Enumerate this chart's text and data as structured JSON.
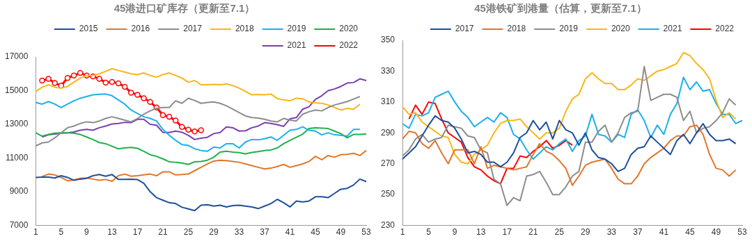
{
  "chart_data": [
    {
      "type": "line",
      "title": "45港进口矿库存（更新至7.1）",
      "categories": [
        "1",
        null,
        null,
        null,
        "5",
        null,
        null,
        null,
        "9",
        null,
        null,
        null,
        "13",
        null,
        null,
        null,
        "17",
        null,
        null,
        null,
        "21",
        null,
        null,
        null,
        "25",
        null,
        null,
        null,
        "29",
        null,
        null,
        null,
        "33",
        null,
        null,
        null,
        "37",
        null,
        null,
        null,
        "41",
        null,
        null,
        null,
        "45",
        null,
        null,
        null,
        "49",
        null,
        null,
        null,
        "53"
      ],
      "ylim": [
        7000,
        17000
      ],
      "yticks": [
        7000,
        9000,
        11000,
        13000,
        15000,
        17000
      ],
      "grid": false,
      "legend": "top",
      "marker": "none",
      "line_style": "solid",
      "series": [
        {
          "name": "2015",
          "color": "#1f4e9c",
          "values": [
            9850,
            9870,
            9870,
            9820,
            9950,
            9850,
            9680,
            9750,
            9800,
            9950,
            10020,
            9920,
            10020,
            9730,
            9730,
            9750,
            9720,
            9500,
            9000,
            8650,
            8500,
            8350,
            8300,
            8080,
            7980,
            7880,
            8200,
            8230,
            8150,
            8200,
            8100,
            8180,
            8200,
            8150,
            8100,
            8000,
            8150,
            8300,
            8550,
            8350,
            8100,
            8450,
            8400,
            8450,
            8700,
            8700,
            8650,
            8900,
            9150,
            9200,
            9400,
            9750,
            9600
          ]
        },
        {
          "name": "2016",
          "color": "#e2762a",
          "values": [
            null,
            9900,
            10050,
            10000,
            9850,
            9650,
            9700,
            9800,
            9820,
            9750,
            9680,
            9730,
            9620,
            9950,
            10050,
            9920,
            9950,
            10000,
            10050,
            9950,
            10180,
            10180,
            10000,
            10020,
            10050,
            10250,
            10450,
            10650,
            10820,
            10870,
            10850,
            10800,
            10750,
            10650,
            10550,
            10450,
            10350,
            10400,
            10500,
            10620,
            10450,
            10550,
            10650,
            10800,
            11100,
            10900,
            11150,
            11050,
            11200,
            11220,
            11280,
            11150,
            11450
          ]
        },
        {
          "name": "2017",
          "color": "#8c8c8c",
          "values": [
            11720,
            11900,
            11950,
            12200,
            12500,
            12800,
            12900,
            13050,
            13150,
            13100,
            13200,
            13350,
            13450,
            13350,
            13250,
            13150,
            13350,
            13600,
            13800,
            13950,
            14000,
            14000,
            14400,
            14250,
            14550,
            14420,
            14250,
            14300,
            14330,
            14250,
            14100,
            13900,
            13700,
            13500,
            13400,
            13370,
            13300,
            13200,
            13150,
            13350,
            13250,
            13200,
            13600,
            13750,
            13850,
            13800,
            14000,
            14150,
            14250,
            14350,
            14500,
            14650,
            null
          ]
        },
        {
          "name": "2018",
          "color": "#f7b718",
          "values": [
            14950,
            15200,
            15350,
            15200,
            15150,
            15250,
            15500,
            15750,
            15900,
            15900,
            16000,
            16150,
            16300,
            16200,
            16100,
            16000,
            15950,
            16050,
            15900,
            15800,
            15950,
            16050,
            15900,
            15750,
            15500,
            15600,
            15350,
            15350,
            15370,
            15350,
            15400,
            15300,
            15150,
            14950,
            14750,
            14770,
            14750,
            14800,
            14530,
            14450,
            14400,
            14550,
            14520,
            14330,
            14280,
            14250,
            14150,
            14000,
            13850,
            13950,
            13900,
            14200,
            null
          ]
        },
        {
          "name": "2019",
          "color": "#1ab0ec",
          "values": [
            14300,
            14200,
            14350,
            14200,
            14000,
            14200,
            14400,
            14550,
            14650,
            14750,
            14780,
            14800,
            14700,
            14450,
            14200,
            13850,
            13650,
            13450,
            13350,
            13200,
            12700,
            12350,
            12050,
            11800,
            11750,
            11550,
            11450,
            11400,
            11650,
            11600,
            11850,
            11850,
            11600,
            11950,
            12100,
            12080,
            12150,
            12250,
            12050,
            12350,
            12650,
            12700,
            12850,
            12650,
            12600,
            12380,
            12500,
            12380,
            12350,
            12300,
            12700,
            12700,
            null
          ]
        },
        {
          "name": "2020",
          "color": "#1fb04c",
          "values": [
            12500,
            12300,
            12400,
            12480,
            12500,
            12500,
            12480,
            12400,
            12250,
            12100,
            11920,
            11850,
            11700,
            11550,
            11600,
            11630,
            11580,
            11400,
            11200,
            11100,
            10950,
            10780,
            10750,
            10700,
            10620,
            10780,
            10800,
            10870,
            11050,
            11350,
            11400,
            11350,
            11320,
            11250,
            11330,
            11380,
            11450,
            11480,
            11600,
            11850,
            12050,
            12230,
            12420,
            12750,
            12800,
            12780,
            12750,
            12600,
            12450,
            12200,
            12400,
            12400,
            12420
          ]
        },
        {
          "name": "2021",
          "color": "#7a3fb0",
          "values": [
            null,
            12250,
            12380,
            12420,
            12480,
            12500,
            12550,
            12650,
            12700,
            12650,
            12800,
            12900,
            13020,
            13050,
            13120,
            13100,
            13300,
            13300,
            13000,
            12950,
            12520,
            12520,
            12600,
            12530,
            12350,
            12100,
            12180,
            12230,
            12450,
            12520,
            12850,
            12800,
            12600,
            12620,
            12800,
            12900,
            13100,
            13050,
            12980,
            12880,
            13330,
            13400,
            13900,
            14050,
            14480,
            14700,
            15000,
            15100,
            15250,
            15450,
            15480,
            15700,
            15600
          ]
        },
        {
          "name": "2022",
          "color": "#ff0000",
          "marker": "circle",
          "values": [
            null,
            15600,
            15700,
            15450,
            15300,
            15750,
            15900,
            16050,
            15900,
            15850,
            15700,
            15480,
            15520,
            15430,
            15230,
            14880,
            14750,
            14550,
            14330,
            14000,
            13550,
            13450,
            13230,
            12850,
            12680,
            12580,
            12650,
            null,
            null,
            null,
            null,
            null,
            null,
            null,
            null,
            null,
            null,
            null,
            null,
            null,
            null,
            null,
            null,
            null,
            null,
            null,
            null,
            null,
            null,
            null,
            null,
            null,
            null
          ]
        }
      ]
    },
    {
      "type": "line",
      "title": "45港铁矿到港量（估算，更新至7.1）",
      "categories": [
        "1",
        null,
        null,
        null,
        "5",
        null,
        null,
        null,
        "9",
        null,
        null,
        null,
        "13",
        null,
        null,
        null,
        "17",
        null,
        null,
        null,
        "21",
        null,
        null,
        null,
        "25",
        null,
        null,
        null,
        "29",
        null,
        null,
        null,
        "33",
        null,
        null,
        null,
        "37",
        null,
        null,
        null,
        "41",
        null,
        null,
        null,
        "45",
        null,
        null,
        null,
        "49",
        null,
        null,
        null,
        "53"
      ],
      "ylim": [
        230,
        350
      ],
      "yticks": [
        230,
        250,
        270,
        290,
        310,
        330,
        350
      ],
      "grid": false,
      "legend": "top",
      "marker": "none",
      "line_style": "solid",
      "series": [
        {
          "name": "2017",
          "color": "#1f4e9c",
          "values": [
            273,
            277,
            281,
            288,
            295,
            301,
            298,
            297,
            293,
            286,
            277,
            278,
            276,
            271,
            271,
            268,
            271,
            277,
            287,
            290,
            298,
            292,
            297,
            286,
            298,
            292,
            290,
            282,
            290,
            279,
            274,
            273,
            270,
            265,
            267,
            276,
            280,
            281,
            288,
            284,
            280,
            276,
            285,
            289,
            283,
            290,
            296,
            289,
            285,
            285,
            286,
            283,
            null
          ]
        },
        {
          "name": "2018",
          "color": "#e2762a",
          "values": [
            286,
            291,
            290,
            283,
            280,
            285,
            277,
            270,
            279,
            279,
            279,
            270,
            281,
            267,
            269,
            268,
            267,
            266,
            267,
            268,
            276,
            283,
            278,
            276,
            272,
            267,
            256,
            262,
            269,
            271,
            272,
            273,
            267,
            260,
            257,
            257,
            262,
            270,
            274,
            277,
            280,
            285,
            288,
            288,
            294,
            295,
            289,
            276,
            267,
            266,
            262,
            266,
            null
          ]
        },
        {
          "name": "2019",
          "color": "#8c8c8c",
          "values": [
            275,
            279,
            286,
            289,
            284,
            286,
            287,
            295,
            294,
            293,
            288,
            287,
            279,
            277,
            260,
            257,
            243,
            248,
            246,
            262,
            263,
            265,
            258,
            250,
            250,
            255,
            262,
            265,
            284,
            284,
            291,
            295,
            284,
            290,
            300,
            303,
            304,
            333,
            311,
            313,
            315,
            315,
            313,
            298,
            304,
            290,
            293,
            294,
            298,
            303,
            312,
            308,
            null
          ]
        },
        {
          "name": "2020",
          "color": "#f7b718",
          "values": [
            307,
            302,
            303,
            297,
            294,
            291,
            288,
            287,
            276,
            271,
            270,
            276,
            279,
            282,
            290,
            296,
            298,
            298,
            299,
            294,
            290,
            286,
            290,
            290,
            293,
            304,
            312,
            315,
            325,
            329,
            325,
            322,
            322,
            318,
            318,
            321,
            325,
            324,
            327,
            330,
            331,
            333,
            335,
            342,
            340,
            335,
            331,
            325,
            311,
            300,
            303,
            299,
            null
          ]
        },
        {
          "name": "2021",
          "color": "#1ab0ec",
          "values": [
            296,
            293,
            302,
            301,
            303,
            313,
            315,
            317,
            310,
            304,
            300,
            294,
            297,
            300,
            297,
            303,
            300,
            289,
            286,
            279,
            273,
            277,
            281,
            279,
            283,
            286,
            278,
            285,
            288,
            302,
            289,
            288,
            284,
            289,
            287,
            302,
            305,
            298,
            287,
            295,
            289,
            302,
            309,
            326,
            318,
            323,
            317,
            318,
            309,
            302,
            302,
            296,
            298
          ]
        },
        {
          "name": "2022",
          "color": "#ff0000",
          "values": [
            null,
            299,
            308,
            302,
            310,
            309,
            299,
            290,
            287,
            284,
            274,
            268,
            266,
            262,
            259,
            257,
            267,
            267,
            275,
            274,
            278,
            281,
            285,
            280,
            282,
            285,
            282,
            null,
            null,
            null,
            null,
            null,
            null,
            null,
            null,
            null,
            null,
            null,
            null,
            null,
            null,
            null,
            null,
            null,
            null,
            null,
            null,
            null,
            null,
            null,
            null,
            null,
            null
          ]
        }
      ]
    }
  ]
}
